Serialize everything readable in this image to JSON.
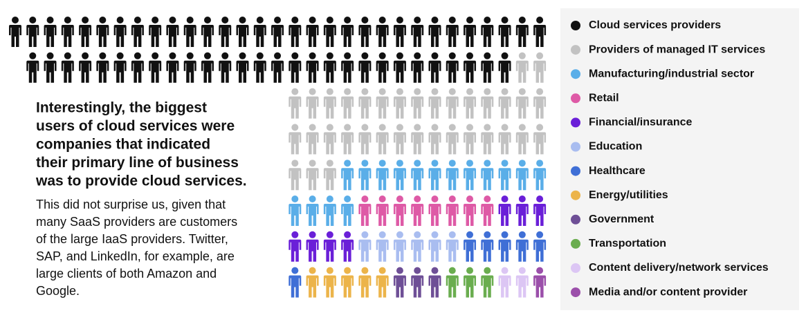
{
  "chart_data": {
    "type": "pictograph",
    "categories": [
      "Cloud services providers",
      "Providers of managed IT services",
      "Manufacturing/industrial sector",
      "Retail",
      "Financial/insurance",
      "Education",
      "Healthcare",
      "Energy/utilities",
      "Government",
      "Transportation",
      "Content delivery/network services",
      "Media and/or content provider"
    ],
    "values": [
      59,
      35,
      16,
      8,
      7,
      6,
      6,
      5,
      3,
      3,
      2,
      1
    ],
    "colors": [
      "#111111",
      "#c2c2c2",
      "#5aaee8",
      "#de5aa6",
      "#6a1fd8",
      "#a9bdf0",
      "#3f6fd6",
      "#ecb44a",
      "#6e4f96",
      "#6aad4f",
      "#dcc6f4",
      "#9b4faa"
    ],
    "heading": [
      "Interestingly, the biggest",
      "users of cloud services were",
      "companies that indicated",
      "their primary line of business",
      "was to provide cloud services."
    ],
    "text": [
      "This did not surprise us, given that",
      "many SaaS providers are customers",
      "of the large IaaS providers. Twitter,",
      "SAP, and LinkedIn, for example, are",
      "large clients of both Amazon and",
      "Google."
    ]
  }
}
